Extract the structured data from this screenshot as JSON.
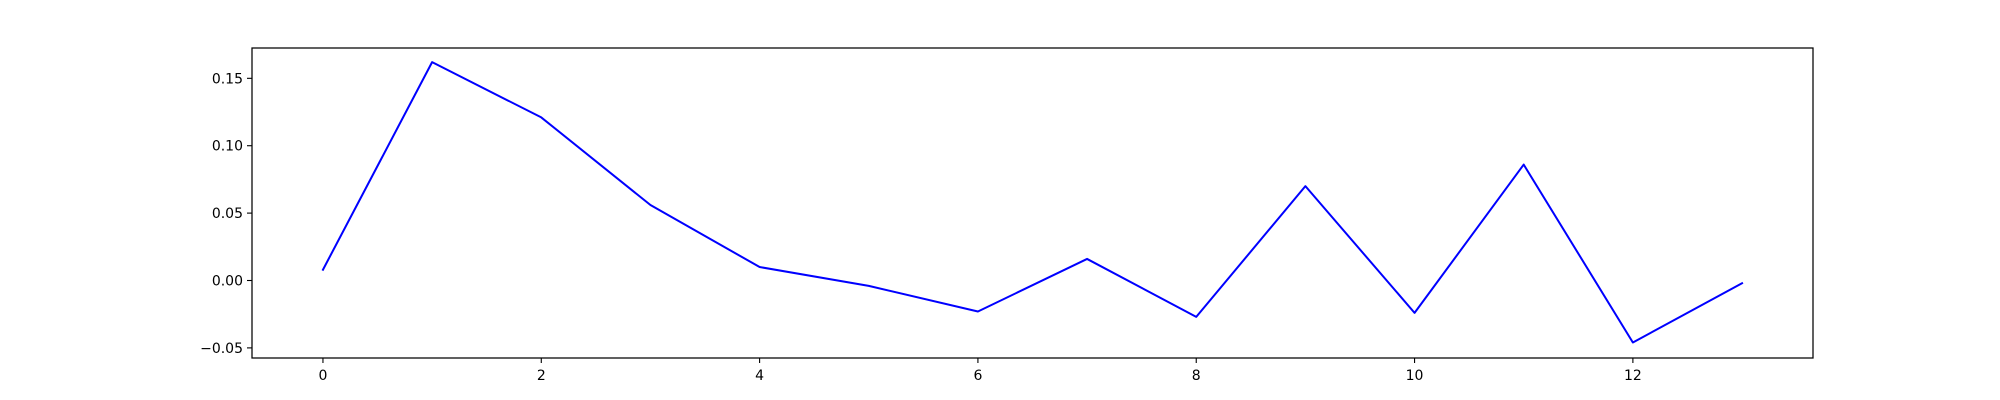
{
  "chart_data": {
    "type": "line",
    "title": "",
    "xlabel": "",
    "ylabel": "",
    "xlim": [
      -0.65,
      13.65
    ],
    "ylim": [
      -0.0575,
      0.1725
    ],
    "grid": false,
    "legend": "none",
    "x_ticks": [
      0,
      2,
      4,
      6,
      8,
      10,
      12
    ],
    "x_tick_labels": [
      "0",
      "2",
      "4",
      "6",
      "8",
      "10",
      "12"
    ],
    "y_ticks": [
      -0.05,
      0.0,
      0.05,
      0.1,
      0.15
    ],
    "y_tick_labels": [
      "−0.05",
      "0.00",
      "0.05",
      "0.10",
      "0.15"
    ],
    "series": [
      {
        "color": "#0000ff",
        "x": [
          0,
          1,
          2,
          3,
          4,
          5,
          6,
          7,
          8,
          9,
          10,
          11,
          12,
          13
        ],
        "y": [
          0.008,
          0.162,
          0.121,
          0.056,
          0.01,
          -0.004,
          -0.023,
          0.016,
          -0.027,
          0.07,
          -0.024,
          0.086,
          -0.046,
          -0.002
        ]
      }
    ]
  }
}
